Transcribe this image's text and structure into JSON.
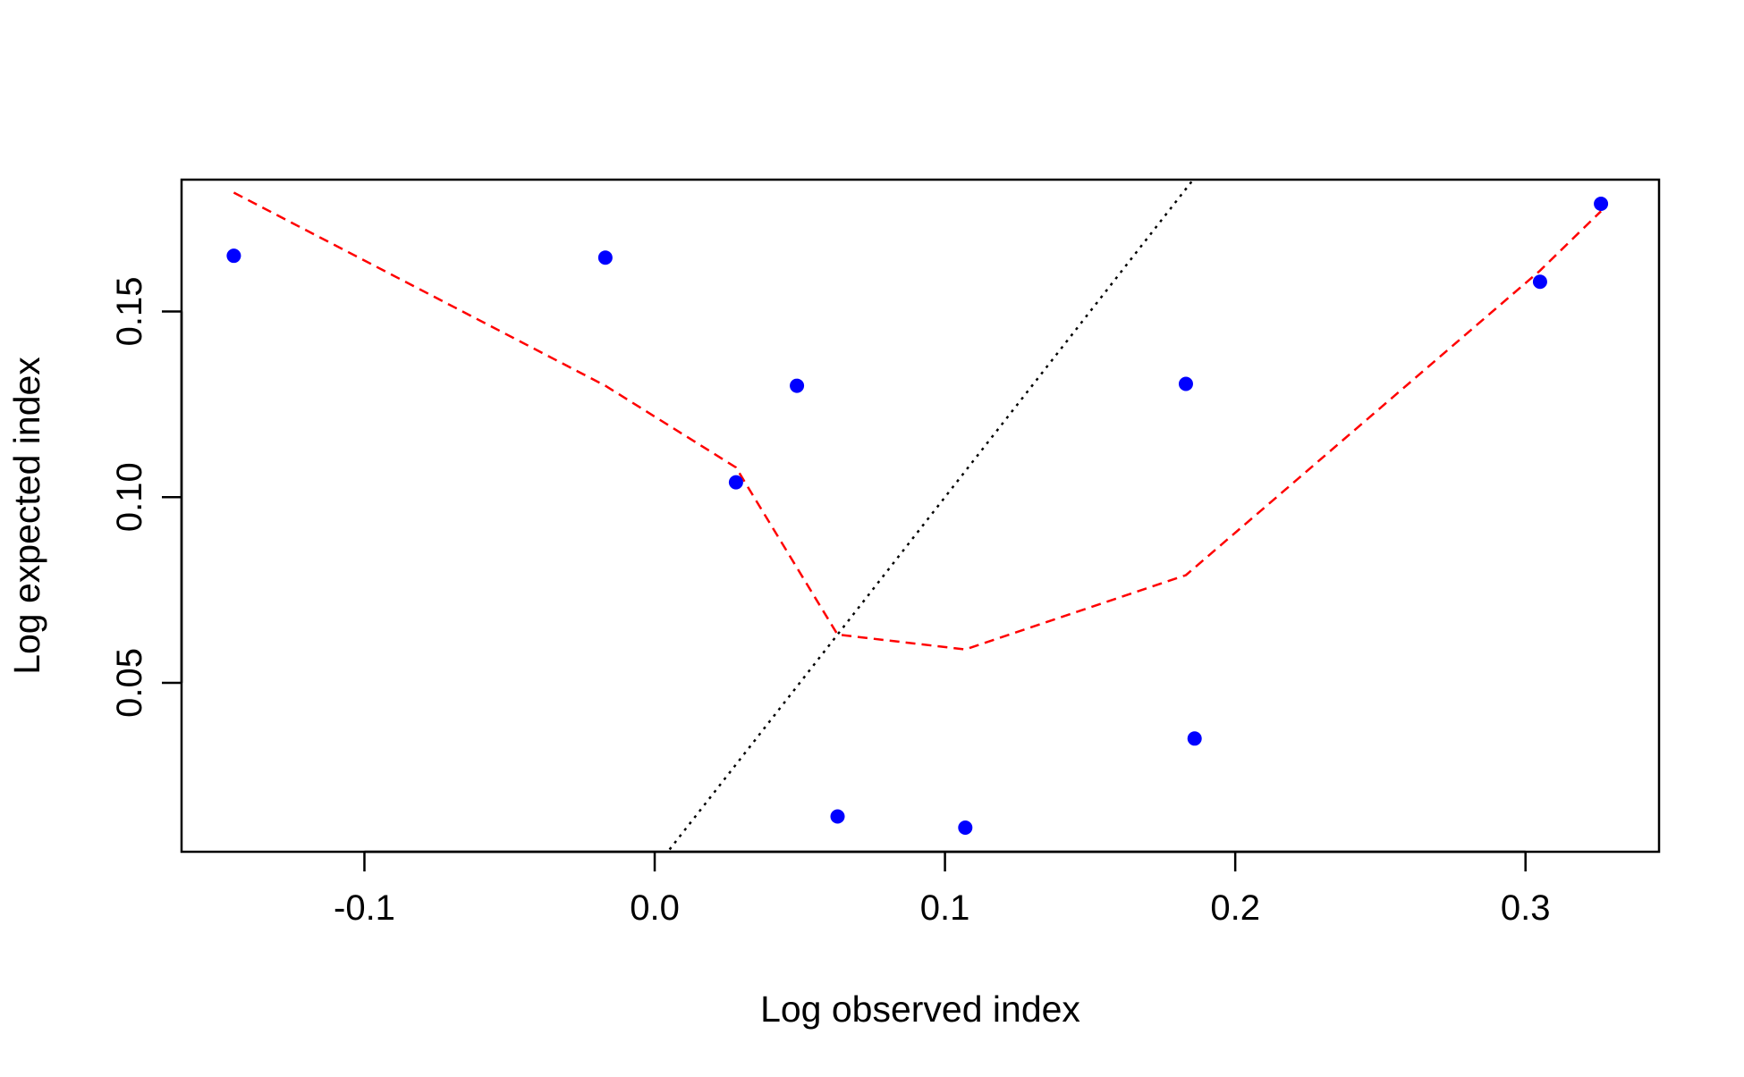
{
  "chart_data": {
    "type": "scatter",
    "title": "",
    "xlabel": "Log observed index",
    "ylabel": "Log expected index",
    "xlim": [
      -0.163,
      0.346
    ],
    "ylim": [
      0.0045,
      0.1855
    ],
    "x_ticks": [
      -0.1,
      0.0,
      0.1,
      0.2,
      0.3
    ],
    "x_tick_labels": [
      "-0.1",
      "0.0",
      "0.1",
      "0.2",
      "0.3"
    ],
    "y_ticks": [
      0.05,
      0.1,
      0.15
    ],
    "y_tick_labels": [
      "0.05",
      "0.10",
      "0.15"
    ],
    "grid": false,
    "legend": "none",
    "colors": {
      "points": "#0000ff",
      "fitted_line": "#ff0000",
      "reference_line": "#000000",
      "frame": "#000000"
    },
    "series": [
      {
        "kind": "points",
        "x": [
          -0.145,
          -0.017,
          0.028,
          0.049,
          0.063,
          0.107,
          0.183,
          0.186,
          0.305,
          0.326
        ],
        "y": [
          0.165,
          0.1645,
          0.104,
          0.13,
          0.014,
          0.011,
          0.1305,
          0.035,
          0.158,
          0.179
        ]
      },
      {
        "kind": "dashed-line",
        "x": [
          -0.145,
          -0.017,
          0.028,
          0.063,
          0.107,
          0.183,
          0.305,
          0.326
        ],
        "y": [
          0.182,
          0.13,
          0.108,
          0.063,
          0.059,
          0.079,
          0.161,
          0.177
        ]
      },
      {
        "kind": "dotted-reference-line",
        "x": [
          0.0,
          0.32
        ],
        "y": [
          0.0,
          0.32
        ]
      }
    ]
  }
}
